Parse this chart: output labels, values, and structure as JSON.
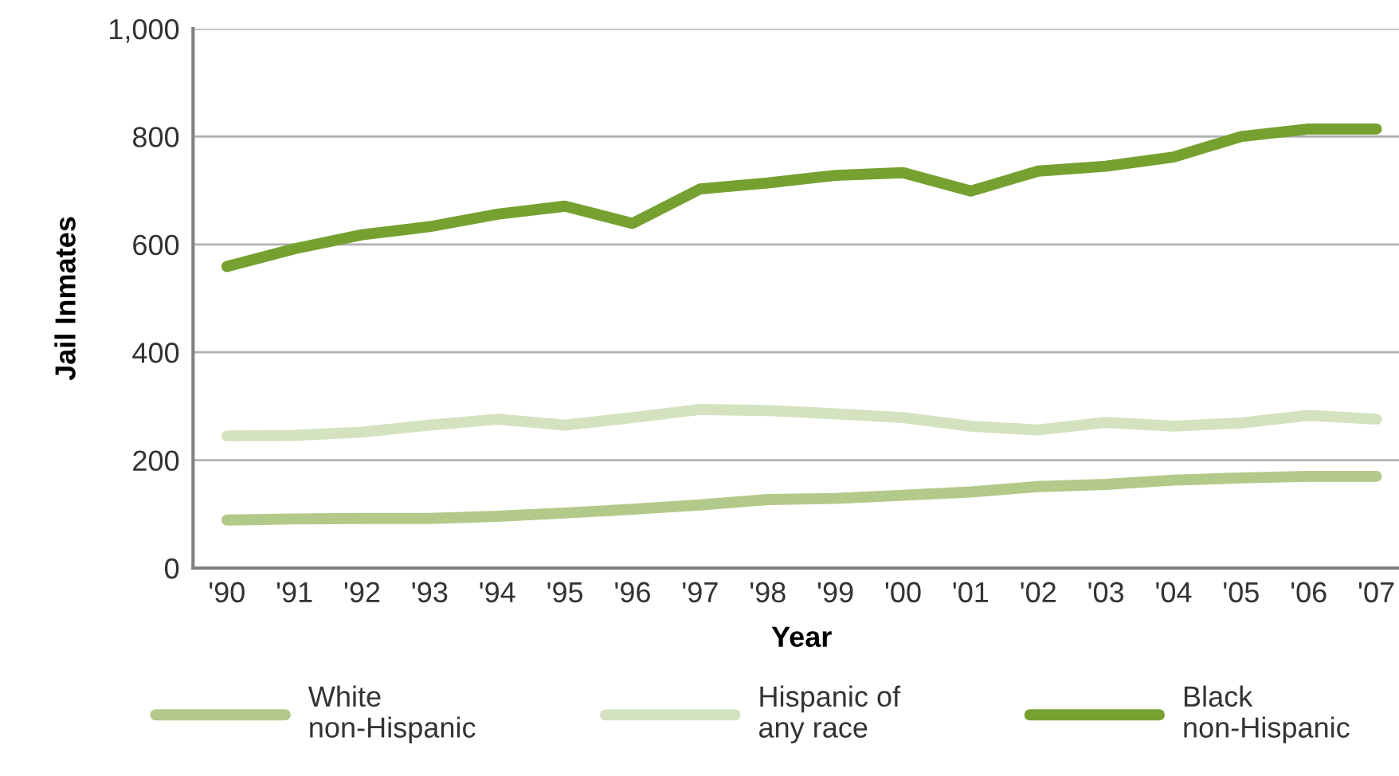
{
  "chart_data": {
    "type": "line",
    "xlabel": "Year",
    "ylabel": "Jail Inmates",
    "categories": [
      "'90",
      "'91",
      "'92",
      "'93",
      "'94",
      "'95",
      "'96",
      "'97",
      "'98",
      "'99",
      "'00",
      "'01",
      "'02",
      "'03",
      "'04",
      "'05",
      "'06",
      "'07"
    ],
    "series": [
      {
        "name": "White\nnon-Hispanic",
        "color": "#b3c98a",
        "values": [
          89,
          91,
          92,
          92,
          96,
          102,
          109,
          117,
          127,
          129,
          135,
          141,
          151,
          155,
          163,
          167,
          170,
          170
        ]
      },
      {
        "name": "Hispanic of\nany race",
        "color": "#d5e2c0",
        "values": [
          245,
          246,
          252,
          265,
          276,
          265,
          279,
          294,
          292,
          286,
          279,
          263,
          256,
          270,
          263,
          269,
          283,
          276
        ]
      },
      {
        "name": "Black\nnon-Hispanic",
        "color": "#76a130",
        "values": [
          559,
          592,
          618,
          633,
          656,
          671,
          639,
          703,
          714,
          728,
          733,
          699,
          736,
          745,
          762,
          800,
          814,
          814
        ]
      }
    ],
    "ylim": [
      0,
      1000
    ],
    "yticks": [
      0,
      200,
      400,
      600,
      800,
      {
        "value": 1000,
        "label": "1,000"
      }
    ],
    "grid": "y",
    "legend": "bottom",
    "marker": "none",
    "line_style": "solid"
  }
}
